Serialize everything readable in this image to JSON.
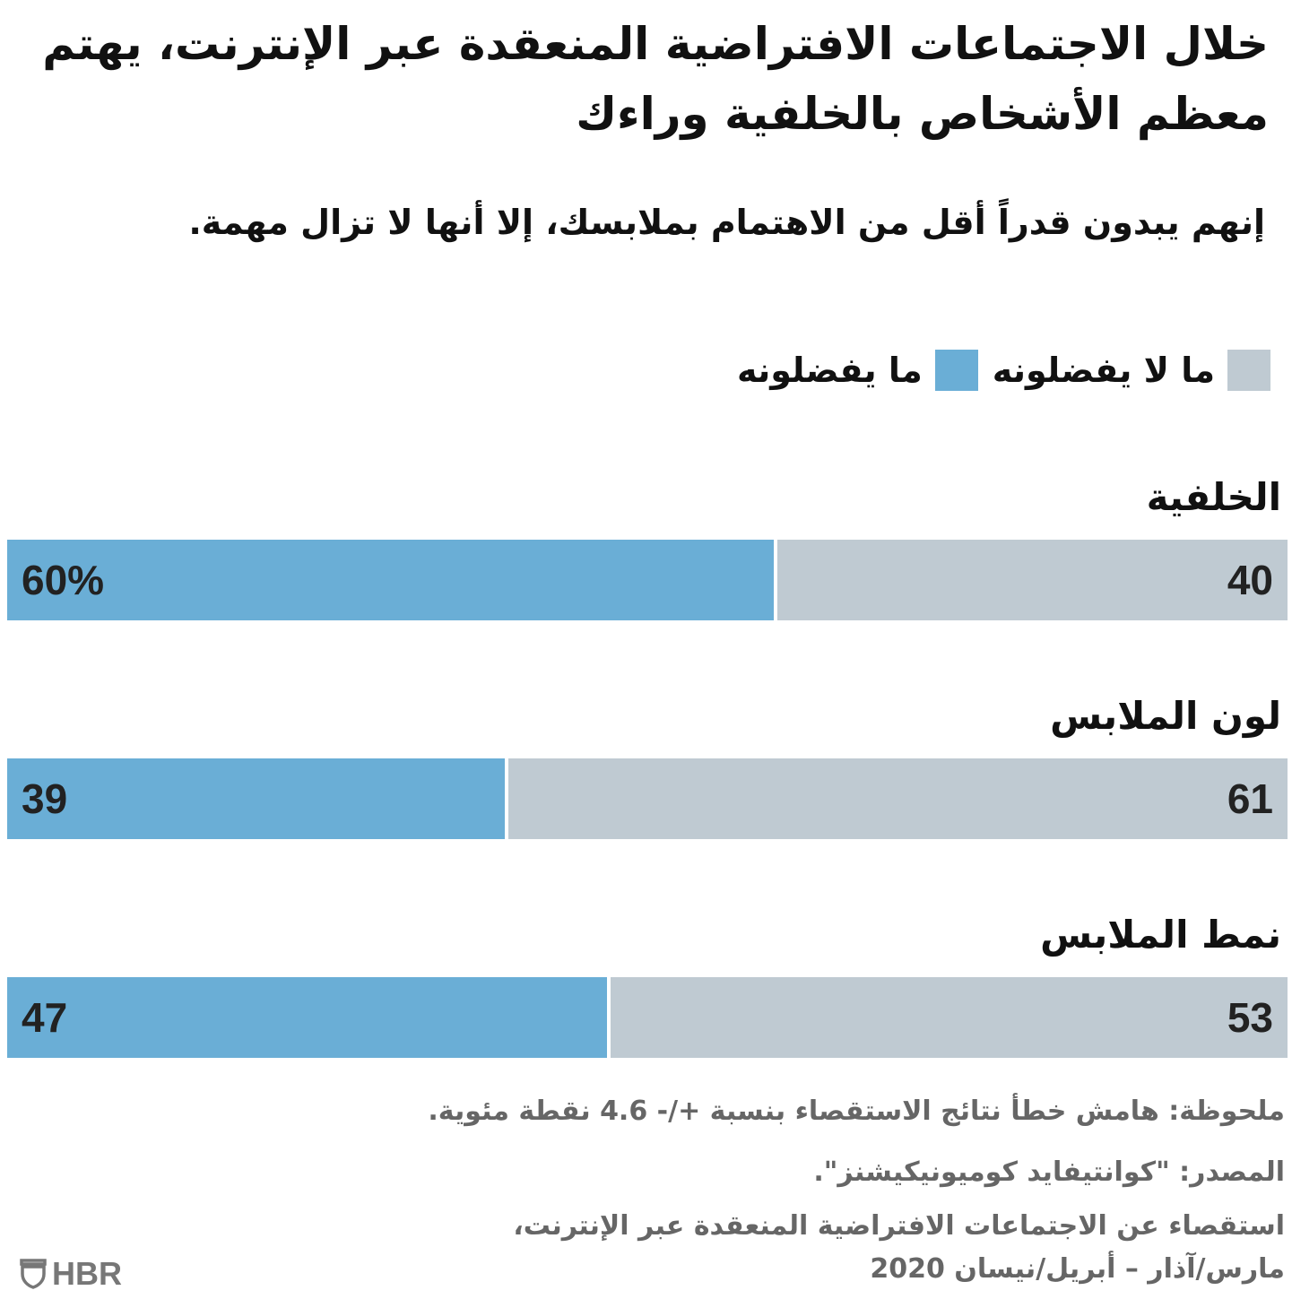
{
  "title": "خلال الاجتماعات الافتراضية المنعقدة عبر الإنترنت، يهتم معظم الأشخاص بالخلفية وراءك",
  "subtitle": "إنهم يبدون قدراً أقل من الاهتمام بملابسك، إلا أنها لا تزال مهمة.",
  "chart_data": {
    "type": "bar",
    "orientation": "horizontal-stacked-100",
    "categories": [
      "الخلفية",
      "لون الملابس",
      "نمط الملابس"
    ],
    "series": [
      {
        "name": "ما يفضلونه",
        "values": [
          60,
          39,
          47
        ],
        "labels": [
          "60%",
          "39",
          "47"
        ],
        "color": "#6aaed6"
      },
      {
        "name": "ما لا يفضلونه",
        "values": [
          40,
          61,
          53
        ],
        "labels": [
          "40",
          "61",
          "53"
        ],
        "color": "#bfcad2"
      }
    ],
    "xlim": [
      0,
      100
    ],
    "legend": "top-right",
    "grid": false
  },
  "notes": {
    "note": "ملحوظة: هامش خطأ نتائج الاستقصاء بنسبة +/- 4.6 نقطة مئوية.",
    "source": "المصدر: \"كوانتيفايد كوميونيكيشنز\".",
    "survey_line1": "استقصاء عن الاجتماعات الافتراضية المنعقدة عبر الإنترنت،",
    "survey_line2": "مارس/آذار – أبريل/نيسان 2020"
  },
  "logo": {
    "text": "HBR",
    "icon": "shield-icon"
  }
}
